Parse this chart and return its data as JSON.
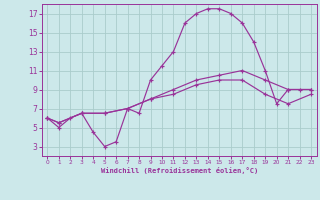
{
  "xlabel": "Windchill (Refroidissement éolien,°C)",
  "bg_color": "#cce8ea",
  "grid_color": "#aacccc",
  "line_color": "#993399",
  "xlim": [
    -0.5,
    23.5
  ],
  "ylim": [
    2,
    18
  ],
  "xticks": [
    0,
    1,
    2,
    3,
    4,
    5,
    6,
    7,
    8,
    9,
    10,
    11,
    12,
    13,
    14,
    15,
    16,
    17,
    18,
    19,
    20,
    21,
    22,
    23
  ],
  "yticks": [
    3,
    5,
    7,
    9,
    11,
    13,
    15,
    17
  ],
  "series1_x": [
    0,
    1,
    2,
    3,
    4,
    5,
    6,
    7,
    8,
    9,
    10,
    11,
    12,
    13,
    14,
    15,
    16,
    17,
    18,
    19,
    20,
    21,
    22,
    23
  ],
  "series1_y": [
    6,
    5,
    6,
    6.5,
    4.5,
    3,
    3.5,
    7,
    6.5,
    10,
    11.5,
    13,
    16,
    17,
    17.5,
    17.5,
    17,
    16,
    14,
    11,
    7.5,
    9,
    9,
    9
  ],
  "series2_x": [
    0,
    1,
    3,
    5,
    7,
    9,
    11,
    13,
    15,
    17,
    19,
    21,
    23
  ],
  "series2_y": [
    6,
    5.5,
    6.5,
    6.5,
    7,
    8,
    9,
    10,
    10.5,
    11,
    10,
    9,
    9
  ],
  "series3_x": [
    0,
    1,
    3,
    5,
    7,
    9,
    11,
    13,
    15,
    17,
    19,
    21,
    23
  ],
  "series3_y": [
    6,
    5.5,
    6.5,
    6.5,
    7,
    8,
    8.5,
    9.5,
    10,
    10,
    8.5,
    7.5,
    8.5
  ]
}
